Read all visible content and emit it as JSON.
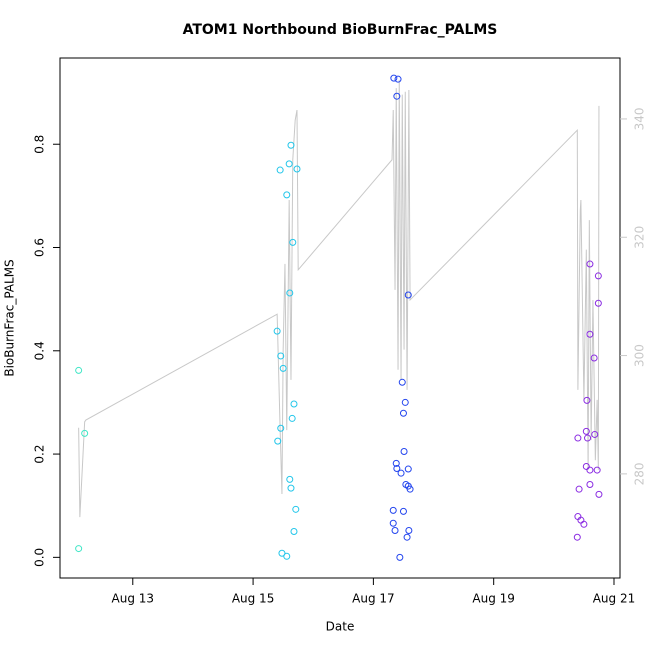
{
  "chart_data": {
    "type": "scatter",
    "title": "ATOM1 Northbound BioBurnFrac_PALMS",
    "x_label": "Date",
    "y_label": "BioBurnFrac_PALMS",
    "xlim": [
      11.79,
      21.1
    ],
    "xticks": [
      {
        "value": 13,
        "label": "Aug 13"
      },
      {
        "value": 15,
        "label": "Aug 15"
      },
      {
        "value": 17,
        "label": "Aug 17"
      },
      {
        "value": 19,
        "label": "Aug 19"
      },
      {
        "value": 21,
        "label": "Aug 21"
      }
    ],
    "ylim": [
      -0.04,
      0.967
    ],
    "yticks": [
      {
        "value": 0,
        "label": "0.0"
      },
      0.2,
      0.4,
      0.6,
      0.8
    ],
    "y2lim": [
      262.4,
      350.3
    ],
    "y2ticks": [
      280,
      300,
      320,
      340
    ],
    "y2_color": "#c8c8c8",
    "series": [
      {
        "type": "scatter",
        "color": "#3fe6c6",
        "x": [
          12.1,
          12.2,
          12.1
        ],
        "values": [
          0.362,
          0.24,
          0.017
        ]
      },
      {
        "type": "scatter",
        "color": "#22c6ea",
        "x": [
          15.45,
          15.63,
          15.6,
          15.73,
          15.56,
          15.66,
          15.61,
          15.4,
          15.46,
          15.5,
          15.68,
          15.65,
          15.46,
          15.41,
          15.61,
          15.63,
          15.71,
          15.68,
          15.48,
          15.56
        ],
        "values": [
          0.75,
          0.798,
          0.762,
          0.752,
          0.702,
          0.61,
          0.512,
          0.438,
          0.39,
          0.366,
          0.297,
          0.269,
          0.25,
          0.225,
          0.151,
          0.134,
          0.093,
          0.05,
          0.008,
          0.002
        ]
      },
      {
        "type": "scatter",
        "color": "#2244ee",
        "x": [
          17.34,
          17.41,
          17.39,
          17.58,
          17.48,
          17.53,
          17.5,
          17.51,
          17.38,
          17.39,
          17.58,
          17.46,
          17.54,
          17.58,
          17.61,
          17.33,
          17.5,
          17.33,
          17.36,
          17.59,
          17.56,
          17.44
        ],
        "values": [
          0.928,
          0.926,
          0.893,
          0.508,
          0.339,
          0.3,
          0.279,
          0.205,
          0.182,
          0.172,
          0.171,
          0.163,
          0.141,
          0.138,
          0.132,
          0.091,
          0.089,
          0.066,
          0.052,
          0.052,
          0.039,
          0.0
        ]
      },
      {
        "type": "scatter",
        "color": "#8a2be2",
        "x": [
          20.6,
          20.74,
          20.74,
          20.6,
          20.67,
          20.55,
          20.54,
          20.68,
          20.4,
          20.56,
          20.54,
          20.6,
          20.72,
          20.6,
          20.42,
          20.75,
          20.4,
          20.45,
          20.5,
          20.39
        ],
        "values": [
          0.568,
          0.545,
          0.492,
          0.432,
          0.386,
          0.304,
          0.244,
          0.238,
          0.231,
          0.231,
          0.176,
          0.169,
          0.169,
          0.141,
          0.132,
          0.122,
          0.079,
          0.072,
          0.064,
          0.039
        ]
      },
      {
        "type": "line",
        "axis": "y2",
        "color": "#c8c8c8",
        "x": [
          12.1,
          12.12,
          12.2,
          12.22,
          15.4,
          15.45,
          15.48,
          15.5,
          15.53,
          15.56,
          15.6,
          15.63,
          15.66,
          15.7,
          15.73,
          15.75,
          17.31,
          17.33,
          17.36,
          17.38,
          17.41,
          17.43,
          17.46,
          17.48,
          17.51,
          17.53,
          17.56,
          17.59,
          17.61,
          20.39,
          20.4,
          20.44,
          20.45,
          20.5,
          20.54,
          20.57,
          20.59,
          20.62,
          20.65,
          20.69,
          20.72,
          20.74,
          20.75
        ],
        "values": [
          287.8,
          272.7,
          288.8,
          289.1,
          307.0,
          287.4,
          276.6,
          301.0,
          315.5,
          287.4,
          326.3,
          295.9,
          333.1,
          339.8,
          341.5,
          314.5,
          333.1,
          341.5,
          311.1,
          345.2,
          297.6,
          346.6,
          295.9,
          344.1,
          301.0,
          344.6,
          294.2,
          344.9,
          309.4,
          338.1,
          294.2,
          324.6,
          326.3,
          292.5,
          317.9,
          280.7,
          322.9,
          285.7,
          309.4,
          282.3,
          292.5,
          280.7,
          342.2
        ]
      }
    ]
  }
}
